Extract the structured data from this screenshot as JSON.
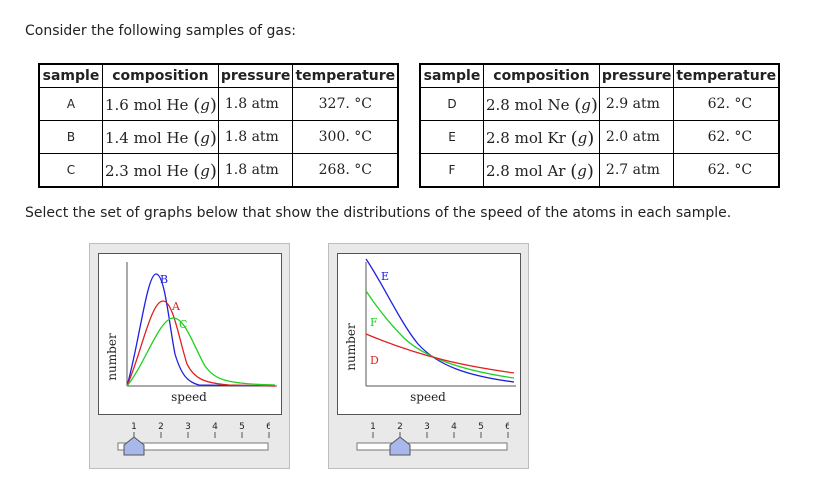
{
  "question": {
    "intro": "Consider the following samples of gas:",
    "instruction": "Select the set of graphs below that show the distributions of the speed of the atoms in each sample."
  },
  "tables": [
    {
      "headers": [
        "sample",
        "composition",
        "pressure",
        "temperature"
      ],
      "rows": [
        {
          "label": "A",
          "amount": "1.6 mol He",
          "phase": "g",
          "pressure": "1.8 atm",
          "temperature": "327. °C"
        },
        {
          "label": "B",
          "amount": "1.4 mol He",
          "phase": "g",
          "pressure": "1.8 atm",
          "temperature": "300. °C"
        },
        {
          "label": "C",
          "amount": "2.3 mol He",
          "phase": "g",
          "pressure": "1.8 atm",
          "temperature": "268. °C"
        }
      ]
    },
    {
      "headers": [
        "sample",
        "composition",
        "pressure",
        "temperature"
      ],
      "rows": [
        {
          "label": "D",
          "amount": "2.8 mol Ne",
          "phase": "g",
          "pressure": "2.9 atm",
          "temperature": "62. °C"
        },
        {
          "label": "E",
          "amount": "2.8 mol Kr",
          "phase": "g",
          "pressure": "2.0 atm",
          "temperature": "62. °C"
        },
        {
          "label": "F",
          "amount": "2.8 mol Ar",
          "phase": "g",
          "pressure": "2.7 atm",
          "temperature": "62. °C"
        }
      ]
    }
  ],
  "colors": {
    "red": "#e02020",
    "blue": "#2020e0",
    "green": "#20d020",
    "axis": "#555555"
  },
  "graphs": [
    {
      "xlabel": "speed",
      "ylabel": "number",
      "curve_labels": [
        {
          "text": "B",
          "color": "#2020e0"
        },
        {
          "text": "A",
          "color": "#e02020"
        },
        {
          "text": "C",
          "color": "#20d020"
        }
      ],
      "slider": {
        "ticks": [
          "1",
          "2",
          "3",
          "4",
          "5",
          "6"
        ],
        "value": 1
      }
    },
    {
      "xlabel": "speed",
      "ylabel": "number",
      "curve_labels": [
        {
          "text": "E",
          "color": "#2020e0"
        },
        {
          "text": "F",
          "color": "#20d020"
        },
        {
          "text": "D",
          "color": "#e02020"
        }
      ],
      "slider": {
        "ticks": [
          "1",
          "2",
          "3",
          "4",
          "5",
          "6"
        ],
        "value": 2
      }
    }
  ]
}
